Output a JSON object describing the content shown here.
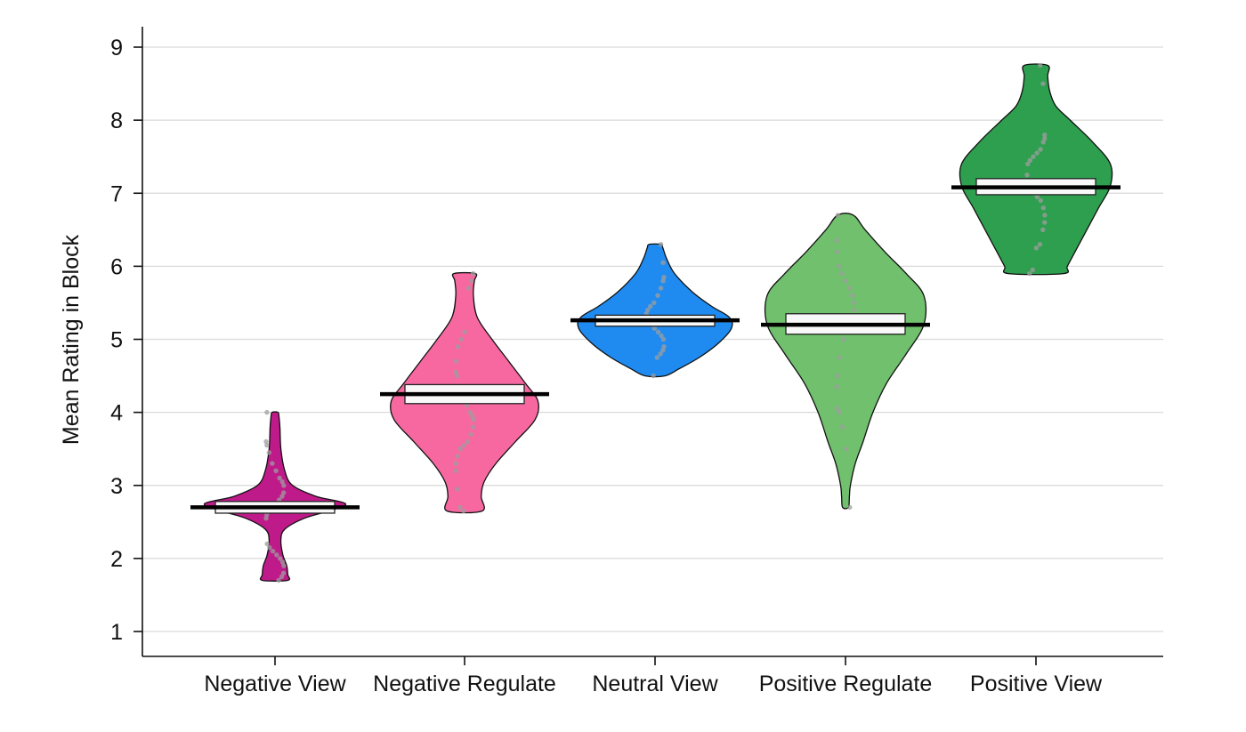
{
  "chart_data": {
    "type": "violin",
    "title": "",
    "xlabel": "",
    "ylabel": "Mean Rating in Block",
    "ylim": [
      0.7,
      9.3
    ],
    "yticks": [
      1,
      2,
      3,
      4,
      5,
      6,
      7,
      8,
      9
    ],
    "grid": true,
    "categories": [
      "Negative View",
      "Negative Regulate",
      "Neutral View",
      "Positive Regulate",
      "Positive View"
    ],
    "series": [
      {
        "category": "Negative View",
        "color": "#bf1a8a",
        "min": 1.7,
        "max": 4.0,
        "mean": 2.7,
        "q1": 2.62,
        "q3": 2.78,
        "profile": [
          [
            1.7,
            0.13
          ],
          [
            1.78,
            0.13
          ],
          [
            1.9,
            0.12
          ],
          [
            2.05,
            0.08
          ],
          [
            2.25,
            0.06
          ],
          [
            2.4,
            0.1
          ],
          [
            2.55,
            0.3
          ],
          [
            2.65,
            0.55
          ],
          [
            2.75,
            0.72
          ],
          [
            2.85,
            0.42
          ],
          [
            3.0,
            0.18
          ],
          [
            3.2,
            0.1
          ],
          [
            3.5,
            0.06
          ],
          [
            3.8,
            0.05
          ],
          [
            3.95,
            0.04
          ],
          [
            4.0,
            0.03
          ]
        ],
        "points": [
          1.7,
          1.75,
          1.8,
          1.9,
          1.95,
          2.0,
          2.05,
          2.1,
          2.15,
          2.2,
          2.55,
          2.6,
          2.65,
          2.7,
          2.72,
          2.8,
          2.85,
          2.9,
          3.0,
          3.05,
          3.1,
          3.2,
          3.3,
          3.45,
          3.55,
          3.6,
          4.0
        ]
      },
      {
        "category": "Negative Regulate",
        "color": "#f768a1",
        "min": 2.65,
        "max": 5.9,
        "mean": 4.25,
        "q1": 4.12,
        "q3": 4.38,
        "profile": [
          [
            2.65,
            0.18
          ],
          [
            2.85,
            0.17
          ],
          [
            3.05,
            0.2
          ],
          [
            3.3,
            0.32
          ],
          [
            3.6,
            0.52
          ],
          [
            3.9,
            0.72
          ],
          [
            4.15,
            0.75
          ],
          [
            4.4,
            0.62
          ],
          [
            4.7,
            0.45
          ],
          [
            5.0,
            0.28
          ],
          [
            5.3,
            0.13
          ],
          [
            5.6,
            0.09
          ],
          [
            5.8,
            0.1
          ],
          [
            5.9,
            0.11
          ]
        ],
        "points": [
          2.65,
          2.7,
          2.95,
          3.2,
          3.3,
          3.4,
          3.5,
          3.55,
          3.6,
          3.7,
          3.8,
          3.9,
          3.95,
          4.0,
          4.1,
          4.2,
          4.3,
          4.5,
          4.55,
          4.7,
          4.9,
          5.0,
          5.1,
          5.7,
          5.8,
          5.9
        ]
      },
      {
        "category": "Neutral View",
        "color": "#1f8bf0",
        "min": 4.5,
        "max": 6.3,
        "mean": 5.26,
        "q1": 5.18,
        "q3": 5.33,
        "profile": [
          [
            4.5,
            0.1
          ],
          [
            4.6,
            0.25
          ],
          [
            4.75,
            0.45
          ],
          [
            4.95,
            0.65
          ],
          [
            5.15,
            0.78
          ],
          [
            5.3,
            0.76
          ],
          [
            5.45,
            0.58
          ],
          [
            5.65,
            0.38
          ],
          [
            5.9,
            0.2
          ],
          [
            6.1,
            0.12
          ],
          [
            6.25,
            0.08
          ],
          [
            6.3,
            0.06
          ]
        ],
        "points": [
          4.5,
          4.75,
          4.8,
          4.85,
          4.9,
          5.0,
          5.05,
          5.1,
          5.15,
          5.2,
          5.25,
          5.3,
          5.35,
          5.4,
          5.45,
          5.5,
          5.6,
          5.7,
          5.8,
          5.85,
          6.05,
          6.3
        ]
      },
      {
        "category": "Positive Regulate",
        "color": "#70c06e",
        "min": 2.7,
        "max": 6.7,
        "mean": 5.2,
        "q1": 5.07,
        "q3": 5.35,
        "profile": [
          [
            2.7,
            0.03
          ],
          [
            2.85,
            0.04
          ],
          [
            3.0,
            0.05
          ],
          [
            3.3,
            0.1
          ],
          [
            3.6,
            0.18
          ],
          [
            4.0,
            0.28
          ],
          [
            4.4,
            0.42
          ],
          [
            4.8,
            0.62
          ],
          [
            5.2,
            0.8
          ],
          [
            5.6,
            0.8
          ],
          [
            5.9,
            0.62
          ],
          [
            6.2,
            0.4
          ],
          [
            6.5,
            0.2
          ],
          [
            6.7,
            0.08
          ]
        ],
        "points": [
          2.7,
          3.5,
          3.8,
          4.0,
          4.05,
          4.35,
          4.5,
          4.75,
          5.0,
          5.1,
          5.2,
          5.3,
          5.4,
          5.5,
          5.6,
          5.7,
          5.8,
          5.9,
          6.0,
          6.2,
          6.35,
          6.7
        ]
      },
      {
        "category": "Positive View",
        "color": "#2e9e4f",
        "min": 5.9,
        "max": 8.75,
        "mean": 7.08,
        "q1": 6.98,
        "q3": 7.2,
        "profile": [
          [
            5.9,
            0.28
          ],
          [
            6.0,
            0.32
          ],
          [
            6.2,
            0.4
          ],
          [
            6.5,
            0.52
          ],
          [
            6.8,
            0.64
          ],
          [
            7.1,
            0.76
          ],
          [
            7.4,
            0.76
          ],
          [
            7.7,
            0.58
          ],
          [
            8.0,
            0.35
          ],
          [
            8.2,
            0.2
          ],
          [
            8.4,
            0.14
          ],
          [
            8.6,
            0.12
          ],
          [
            8.75,
            0.12
          ]
        ],
        "points": [
          5.9,
          5.95,
          6.25,
          6.3,
          6.5,
          6.6,
          6.7,
          6.8,
          6.9,
          6.95,
          7.0,
          7.05,
          7.15,
          7.25,
          7.4,
          7.45,
          7.5,
          7.55,
          7.6,
          7.7,
          7.75,
          7.8,
          8.5,
          8.75
        ]
      }
    ]
  }
}
